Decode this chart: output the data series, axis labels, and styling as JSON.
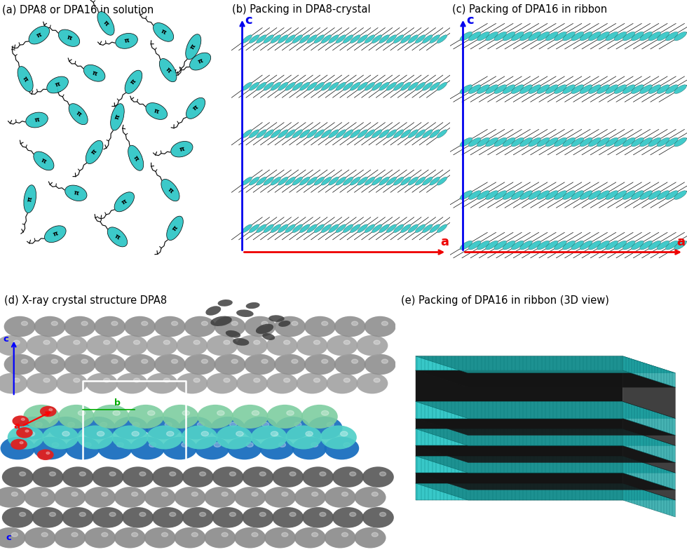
{
  "panel_labels": [
    "(a) DPA8 or DPA16 in solution",
    "(b) Packing in DPA8-crystal",
    "(c) Packing of DPA16 in ribbon",
    "(d) X-ray crystal structure DPA8",
    "(e) Packing of DPA16 in ribbon (3D view)"
  ],
  "teal": "#2DC5C5",
  "black": "#0A0A0A",
  "white": "#FFFFFF",
  "blue": "#0000EE",
  "red": "#EE0000",
  "gray": "#8C8C8C",
  "gray_light": "#A0A0A0",
  "gray_dark": "#5A5A5A",
  "blue_sphere": "#1A6FBF",
  "teal_sphere": "#50D0C8",
  "green_sphere": "#7DCEA0",
  "red_sphere": "#DD2222",
  "dark_sphere": "#383838"
}
